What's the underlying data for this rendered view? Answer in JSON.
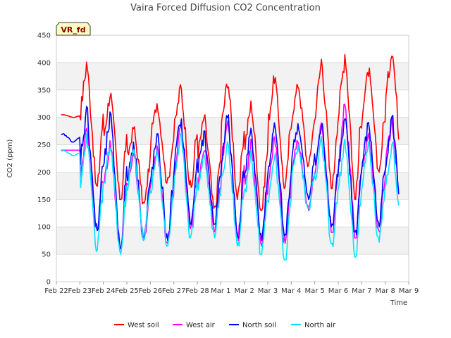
{
  "chart_data": {
    "type": "line",
    "title": "Vaira Forced Diffusion CO2 Concentration",
    "xlabel": "Time",
    "ylabel": "CO2 (ppm)",
    "badge": "VR_fd",
    "ylim": [
      0,
      450
    ],
    "yticks": [
      0,
      50,
      100,
      150,
      200,
      250,
      300,
      350,
      400,
      450
    ],
    "xlim": [
      "2024-02-22",
      "2024-03-09"
    ],
    "xticks": [
      "Feb 22",
      "Feb 23",
      "Feb 24",
      "Feb 25",
      "Feb 26",
      "Feb 27",
      "Feb 28",
      "Mar 1",
      "Mar 2",
      "Mar 3",
      "Mar 4",
      "Mar 5",
      "Mar 6",
      "Mar 7",
      "Mar 8",
      "Mar 9"
    ],
    "grid": true,
    "legend_position": "bottom",
    "x_days": [
      "Feb 22",
      "Feb 23",
      "Feb 24",
      "Feb 25",
      "Feb 26",
      "Feb 27",
      "Feb 28",
      "Mar 1",
      "Mar 2",
      "Mar 3",
      "Mar 4",
      "Mar 5",
      "Mar 6",
      "Mar 7",
      "Mar 8"
    ],
    "series": [
      {
        "name": "West soil",
        "color": "#ff0000",
        "daily_min": [
          300,
          170,
          150,
          140,
          180,
          170,
          130,
          150,
          130,
          170,
          210,
          170,
          150,
          200,
          190
        ],
        "daily_max": [
          305,
          405,
          350,
          285,
          330,
          360,
          305,
          375,
          330,
          380,
          365,
          410,
          425,
          390,
          435
        ]
      },
      {
        "name": "West air",
        "color": "#ff00ff",
        "daily_min": [
          240,
          90,
          60,
          75,
          70,
          90,
          90,
          75,
          65,
          70,
          130,
          90,
          80,
          90,
          95
        ],
        "daily_max": [
          240,
          280,
          260,
          240,
          250,
          290,
          250,
          310,
          260,
          270,
          260,
          290,
          330,
          280,
          300
        ]
      },
      {
        "name": "North soil",
        "color": "#0000ff",
        "daily_min": [
          255,
          90,
          60,
          80,
          75,
          105,
          105,
          80,
          75,
          80,
          150,
          100,
          85,
          100,
          100
        ],
        "daily_max": [
          270,
          320,
          310,
          260,
          270,
          300,
          275,
          310,
          280,
          290,
          290,
          290,
          300,
          295,
          305
        ]
      },
      {
        "name": "North air",
        "color": "#00e5ff",
        "daily_min": [
          230,
          55,
          50,
          75,
          65,
          80,
          80,
          65,
          50,
          40,
          130,
          55,
          45,
          70,
          70
        ],
        "daily_max": [
          240,
          270,
          255,
          245,
          240,
          270,
          235,
          260,
          240,
          235,
          250,
          265,
          260,
          255,
          260
        ]
      }
    ]
  }
}
